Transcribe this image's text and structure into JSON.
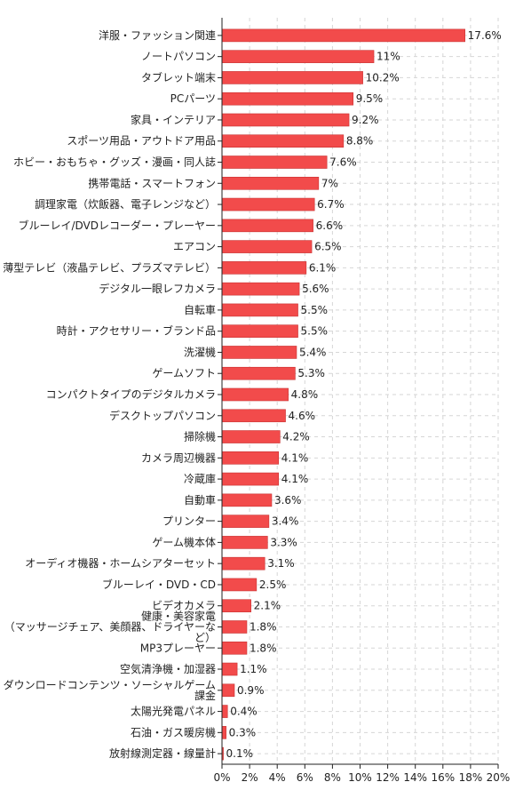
{
  "chart_data": {
    "type": "bar",
    "orientation": "horizontal",
    "color": "#f24b4b",
    "xlim": [
      0,
      20
    ],
    "x_ticks": [
      "0%",
      "2%",
      "4%",
      "6%",
      "8%",
      "10%",
      "12%",
      "14%",
      "16%",
      "18%",
      "20%"
    ],
    "grid": true,
    "categories": [
      "洋服・ファッション関連",
      "ノートパソコン",
      "タブレット端末",
      "PCパーツ",
      "家具・インテリア",
      "スポーツ用品・アウトドア用品",
      "ホビー・おもちゃ・グッズ・漫画・同人誌",
      "携帯電話・スマートフォン",
      "調理家電（炊飯器、電子レンジなど）",
      "ブルーレイ/DVDレコーダー・プレーヤー",
      "エアコン",
      "薄型テレビ（液晶テレビ、プラズマテレビ）",
      "デジタル一眼レフカメラ",
      "自転車",
      "時計・アクセサリー・ブランド品",
      "洗濯機",
      "ゲームソフト",
      "コンパクトタイプのデジタルカメラ",
      "デスクトップパソコン",
      "掃除機",
      "カメラ周辺機器",
      "冷蔵庫",
      "自動車",
      "プリンター",
      "ゲーム機本体",
      "オーディオ機器・ホームシアターセット",
      "ブルーレイ・DVD・CD",
      "ビデオカメラ",
      "健康・美容家電（マッサージチェア、美顔器、ドライヤーなど）",
      "MP3プレーヤー",
      "空気清浄機・加湿器",
      "ダウンロードコンテンツ・ソーシャルゲーム課金",
      "太陽光発電パネル",
      "石油・ガス暖房機",
      "放射線測定器・線量計"
    ],
    "values": [
      17.6,
      11,
      10.2,
      9.5,
      9.2,
      8.8,
      7.6,
      7,
      6.7,
      6.6,
      6.5,
      6.1,
      5.6,
      5.5,
      5.5,
      5.4,
      5.3,
      4.8,
      4.6,
      4.2,
      4.1,
      4.1,
      3.6,
      3.4,
      3.3,
      3.1,
      2.5,
      2.1,
      1.8,
      1.8,
      1.1,
      0.9,
      0.4,
      0.3,
      0.1
    ],
    "value_labels": [
      "17.6%",
      "11%",
      "10.2%",
      "9.5%",
      "9.2%",
      "8.8%",
      "7.6%",
      "7%",
      "6.7%",
      "6.6%",
      "6.5%",
      "6.1%",
      "5.6%",
      "5.5%",
      "5.5%",
      "5.4%",
      "5.3%",
      "4.8%",
      "4.6%",
      "4.2%",
      "4.1%",
      "4.1%",
      "3.6%",
      "3.4%",
      "3.3%",
      "3.1%",
      "2.5%",
      "2.1%",
      "1.8%",
      "1.8%",
      "1.1%",
      "0.9%",
      "0.4%",
      "0.3%",
      "0.1%"
    ],
    "category_display_lines": [
      [
        "洋服・ファッション関連"
      ],
      [
        "ノートパソコン"
      ],
      [
        "タブレット端末"
      ],
      [
        "PCパーツ"
      ],
      [
        "家具・インテリア"
      ],
      [
        "スポーツ用品・アウトドア用品"
      ],
      [
        "ホビー・おもちゃ・グッズ・漫画・同人誌"
      ],
      [
        "携帯電話・スマートフォン"
      ],
      [
        "調理家電（炊飯器、電子レンジなど）"
      ],
      [
        "ブルーレイ/DVDレコーダー・プレーヤー"
      ],
      [
        "エアコン"
      ],
      [
        "薄型テレビ（液晶テレビ、プラズマテレビ）"
      ],
      [
        "デジタル一眼レフカメラ"
      ],
      [
        "自転車"
      ],
      [
        "時計・アクセサリー・ブランド品"
      ],
      [
        "洗濯機"
      ],
      [
        "ゲームソフト"
      ],
      [
        "コンパクトタイプのデジタルカメラ"
      ],
      [
        "デスクトップパソコン"
      ],
      [
        "掃除機"
      ],
      [
        "カメラ周辺機器"
      ],
      [
        "冷蔵庫"
      ],
      [
        "自動車"
      ],
      [
        "プリンター"
      ],
      [
        "ゲーム機本体"
      ],
      [
        "オーディオ機器・ホームシアターセット"
      ],
      [
        "ブルーレイ・DVD・CD"
      ],
      [
        "ビデオカメラ"
      ],
      [
        "健康・美容家電",
        "（マッサージチェア、美顔器、ドライヤーな",
        "ど）"
      ],
      [
        "MP3プレーヤー"
      ],
      [
        "空気清浄機・加湿器"
      ],
      [
        "ダウンロードコンテンツ・ソーシャルゲーム",
        "課金"
      ],
      [
        "太陽光発電パネル"
      ],
      [
        "石油・ガス暖房機"
      ],
      [
        "放射線測定器・線量計"
      ]
    ]
  }
}
